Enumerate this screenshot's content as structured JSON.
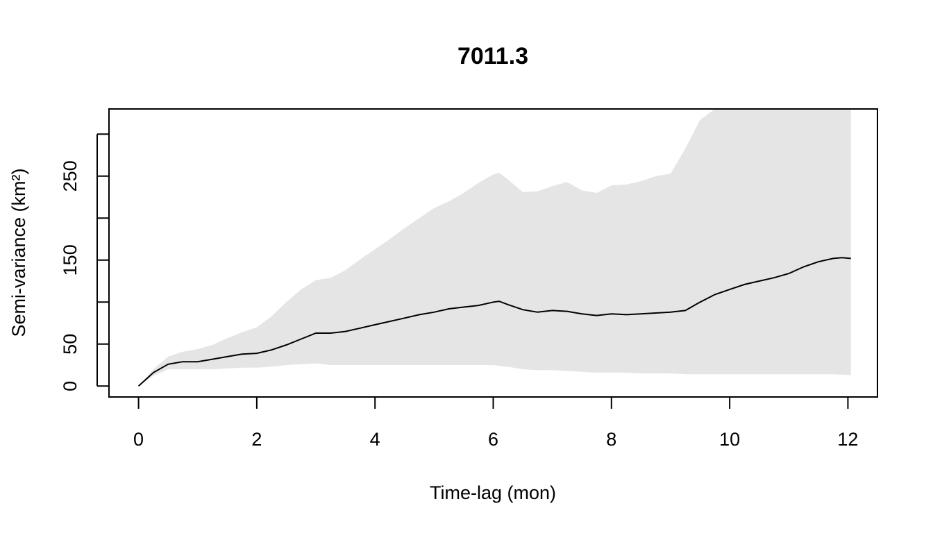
{
  "chart_data": {
    "type": "area",
    "title": "7011.3",
    "xlabel": "Time-lag (mon)",
    "ylabel": "Semi-variance (km²)",
    "xlim": [
      -0.5,
      12.5
    ],
    "ylim": [
      -13,
      330
    ],
    "x_ticks": [
      0,
      2,
      4,
      6,
      8,
      10,
      12
    ],
    "y_ticks": [
      0,
      50,
      100,
      150,
      200,
      250,
      300
    ],
    "y_tick_labels": [
      "0",
      "50",
      "",
      "150",
      "",
      "250",
      ""
    ],
    "grid": false,
    "legend": "none",
    "colors": {
      "band": "#e5e5e5",
      "line": "#000000",
      "axes": "#000000"
    },
    "series": [
      {
        "role": "confidence-band",
        "x": [
          0,
          0.25,
          0.5,
          0.75,
          1,
          1.25,
          1.5,
          1.75,
          2,
          2.25,
          2.5,
          2.75,
          3,
          3.25,
          3.5,
          3.75,
          4,
          4.25,
          4.5,
          4.75,
          5,
          5.25,
          5.5,
          5.75,
          6,
          6.1,
          6.25,
          6.5,
          6.75,
          7,
          7.25,
          7.5,
          7.75,
          8,
          8.25,
          8.5,
          8.75,
          9,
          9.25,
          9.5,
          9.75,
          10,
          10.25,
          10.5,
          10.75,
          11,
          11.25,
          11.5,
          11.75,
          12.05
        ],
        "lower": [
          0,
          12,
          20,
          20,
          20,
          20,
          21,
          22,
          22,
          23,
          25,
          26,
          27,
          25,
          25,
          25,
          25,
          25,
          25,
          25,
          25,
          25,
          25,
          25,
          25,
          24,
          23,
          20,
          19,
          19,
          18,
          17,
          16,
          16,
          16,
          15,
          15,
          15,
          14,
          14,
          14,
          14,
          14,
          14,
          14,
          14,
          14,
          14,
          14,
          13
        ],
        "upper": [
          0,
          20,
          35,
          41,
          44,
          49,
          57,
          64,
          70,
          83,
          100,
          115,
          126,
          129,
          138,
          151,
          163,
          175,
          188,
          200,
          212,
          220,
          230,
          242,
          252,
          254,
          246,
          231,
          232,
          238,
          243,
          233,
          230,
          239,
          240,
          244,
          250,
          253,
          283,
          317,
          330,
          330,
          330,
          330,
          330,
          330,
          330,
          330,
          330,
          330
        ]
      },
      {
        "role": "estimate",
        "x": [
          0,
          0.25,
          0.5,
          0.75,
          1,
          1.25,
          1.5,
          1.75,
          2,
          2.25,
          2.5,
          2.75,
          3,
          3.25,
          3.5,
          3.75,
          4,
          4.25,
          4.5,
          4.75,
          5,
          5.25,
          5.5,
          5.75,
          6,
          6.1,
          6.25,
          6.5,
          6.75,
          7,
          7.25,
          7.5,
          7.75,
          8,
          8.25,
          8.5,
          8.75,
          9,
          9.25,
          9.5,
          9.75,
          10,
          10.25,
          10.5,
          10.75,
          11,
          11.25,
          11.5,
          11.75,
          11.9,
          12.05
        ],
        "values": [
          0,
          16,
          26,
          29,
          29,
          32,
          35,
          38,
          39,
          43,
          49,
          56,
          63,
          63,
          65,
          69,
          73,
          77,
          81,
          85,
          88,
          92,
          94,
          96,
          100,
          101,
          97,
          91,
          88,
          90,
          89,
          86,
          84,
          86,
          85,
          86,
          87,
          88,
          90,
          100,
          109,
          115,
          121,
          125,
          129,
          134,
          142,
          148,
          152,
          153,
          152
        ]
      }
    ]
  }
}
